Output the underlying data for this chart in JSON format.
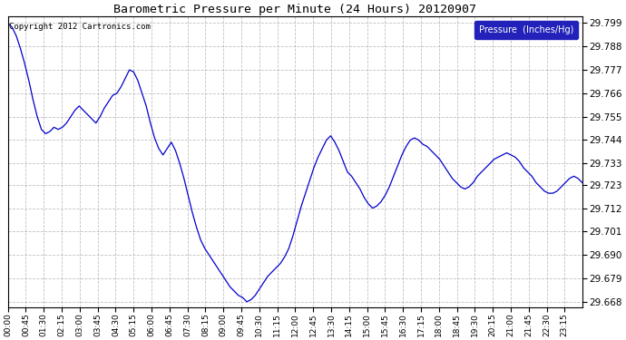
{
  "title": "Barometric Pressure per Minute (24 Hours) 20120907",
  "copyright": "Copyright 2012 Cartronics.com",
  "legend_label": "Pressure  (Inches/Hg)",
  "line_color": "#0000cc",
  "background_color": "#ffffff",
  "grid_color": "#b0b0b0",
  "ylim": [
    29.6655,
    29.802
  ],
  "yticks": [
    29.668,
    29.679,
    29.69,
    29.701,
    29.712,
    29.723,
    29.733,
    29.744,
    29.755,
    29.766,
    29.777,
    29.788,
    29.799
  ],
  "xtick_labels": [
    "00:00",
    "00:45",
    "01:30",
    "02:15",
    "03:00",
    "03:45",
    "04:30",
    "05:15",
    "06:00",
    "06:45",
    "07:30",
    "08:15",
    "09:00",
    "09:45",
    "10:30",
    "11:15",
    "12:00",
    "12:45",
    "13:30",
    "14:15",
    "15:00",
    "15:45",
    "16:30",
    "17:15",
    "18:00",
    "18:45",
    "19:30",
    "20:15",
    "21:00",
    "21:45",
    "22:30",
    "23:15"
  ],
  "pressure_data": [
    29.799,
    29.797,
    29.793,
    29.787,
    29.78,
    29.772,
    29.763,
    29.755,
    29.749,
    29.747,
    29.748,
    29.75,
    29.749,
    29.75,
    29.752,
    29.755,
    29.758,
    29.76,
    29.758,
    29.756,
    29.754,
    29.752,
    29.755,
    29.759,
    29.762,
    29.765,
    29.766,
    29.769,
    29.773,
    29.777,
    29.776,
    29.772,
    29.766,
    29.76,
    29.752,
    29.745,
    29.74,
    29.737,
    29.74,
    29.743,
    29.739,
    29.733,
    29.726,
    29.718,
    29.71,
    29.703,
    29.697,
    29.693,
    29.69,
    29.687,
    29.684,
    29.681,
    29.678,
    29.675,
    29.673,
    29.671,
    29.67,
    29.668,
    29.669,
    29.671,
    29.674,
    29.677,
    29.68,
    29.682,
    29.684,
    29.686,
    29.689,
    29.693,
    29.699,
    29.706,
    29.713,
    29.719,
    29.725,
    29.731,
    29.736,
    29.74,
    29.744,
    29.746,
    29.743,
    29.739,
    29.734,
    29.729,
    29.727,
    29.724,
    29.721,
    29.717,
    29.714,
    29.712,
    29.713,
    29.715,
    29.718,
    29.722,
    29.727,
    29.732,
    29.737,
    29.741,
    29.744,
    29.745,
    29.744,
    29.742,
    29.741,
    29.739,
    29.737,
    29.735,
    29.732,
    29.729,
    29.726,
    29.724,
    29.722,
    29.721,
    29.722,
    29.724,
    29.727,
    29.729,
    29.731,
    29.733,
    29.735,
    29.736,
    29.737,
    29.738,
    29.737,
    29.736,
    29.734,
    29.731,
    29.729,
    29.727,
    29.724,
    29.722,
    29.72,
    29.719,
    29.719,
    29.72,
    29.722,
    29.724,
    29.726,
    29.727,
    29.726,
    29.724
  ]
}
